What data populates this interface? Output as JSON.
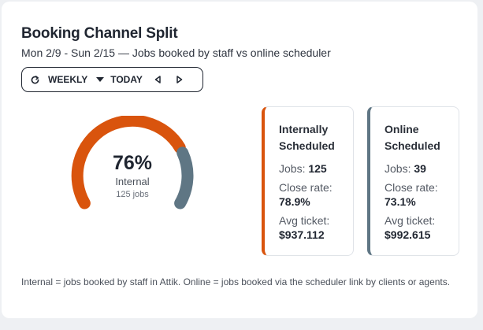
{
  "header": {
    "title": "Booking Channel Split",
    "subtitle": "Mon 2/9 - Sun 2/15 — Jobs booked by staff vs online scheduler"
  },
  "toolbar": {
    "period_label": "WEEKLY",
    "today_label": "TODAY",
    "icons": [
      "refresh-icon",
      "caret-down-icon",
      "prev-arrow-icon",
      "next-arrow-icon"
    ]
  },
  "gauge": {
    "percent_text": "76%",
    "label": "Internal",
    "jobs_text": "125 jobs",
    "fraction": 0.76,
    "colors": {
      "internal": "#d9540d",
      "online": "#5f7684"
    }
  },
  "stats": {
    "internal": {
      "title_line1": "Internally",
      "title_line2": "Scheduled",
      "jobs_label": "Jobs:",
      "jobs_value": "125",
      "close_rate_label": "Close rate:",
      "close_rate_value": "78.9%",
      "avg_ticket_label": "Avg ticket:",
      "avg_ticket_value": "$937.112"
    },
    "online": {
      "title_line1": "Online",
      "title_line2": "Scheduled",
      "jobs_label": "Jobs:",
      "jobs_value": "39",
      "close_rate_label": "Close rate:",
      "close_rate_value": "73.1%",
      "avg_ticket_label": "Avg ticket:",
      "avg_ticket_value": "$992.615"
    }
  },
  "footnote": "Internal = jobs booked by staff in Attik. Online = jobs booked via the scheduler link by clients or agents."
}
